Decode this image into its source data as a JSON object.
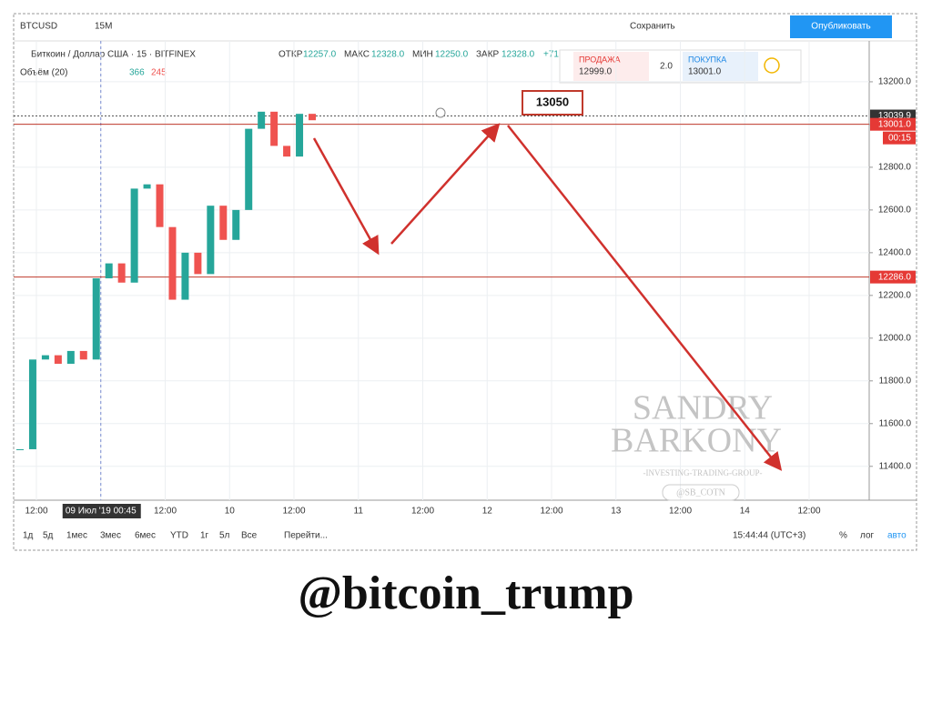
{
  "toolbar": {
    "symbol": "BTCUSD",
    "interval": "15M",
    "save": "Сохранить",
    "publish": "Опубликовать"
  },
  "legend": {
    "name": "Биткоин / Доллар США · 15 · BITFINEX",
    "open_label": "ОТКР",
    "open": "12257.0",
    "high_label": "МАКС",
    "high": "12328.0",
    "low_label": "МИН",
    "low": "12250.0",
    "close_label": "ЗАКР",
    "close": "12328.0",
    "change": "+71.",
    "volume_label": "Объём (20)",
    "volume_1": "366",
    "volume_2": "245"
  },
  "trade_panel": {
    "sell_label": "ПРОДАЖА",
    "sell": "12999.0",
    "spread": "2.0",
    "buy_label": "ПОКУПКА",
    "buy": "13001.0"
  },
  "chart_data": {
    "type": "candlestick",
    "closes": [
      11480,
      11900,
      11920,
      11880,
      11940,
      11900,
      12280,
      12350,
      12260,
      12700,
      12720,
      12520,
      12180,
      12400,
      12300,
      12620,
      12460,
      12600,
      12980,
      13060,
      12900,
      12850,
      13050,
      13020
    ],
    "up_color": "#26a69a",
    "down_color": "#ef5350",
    "x_labels": [
      "12:00",
      "09 Июл '19   00:45",
      "12:00",
      "10",
      "12:00",
      "11",
      "12:00",
      "12",
      "12:00",
      "13",
      "12:00",
      "14",
      "12:00"
    ],
    "ylim": [
      11250,
      13370
    ],
    "yticks": [
      {
        "value": 11400,
        "label": "11400.0"
      },
      {
        "value": 11600,
        "label": "11600.0"
      },
      {
        "value": 11800,
        "label": "11800.0"
      },
      {
        "value": 12000,
        "label": "12000.0"
      },
      {
        "value": 12200,
        "label": "12200.0"
      },
      {
        "value": 12400,
        "label": "12400.0"
      },
      {
        "value": 12600,
        "label": "12600.0"
      },
      {
        "value": 12800,
        "label": "12800.0"
      },
      {
        "value": 13000,
        "label": "13000.0"
      },
      {
        "value": 13200,
        "label": "13200.0"
      }
    ],
    "grid": true,
    "price_lines": [
      {
        "value": 13039.9,
        "label": "13039.9",
        "color": "#555555",
        "label_color": "#333333",
        "style": "dotted"
      },
      {
        "value": 13001,
        "label": "13001.0",
        "color": "#c0392b",
        "label_color": "#e53935",
        "style": "solid"
      },
      {
        "value": 12286,
        "label": "12286.0",
        "color": "#c0392b",
        "label_color": "#e53935",
        "style": "solid"
      }
    ],
    "timer": "00:15",
    "annotation": "13050"
  },
  "bottom_bar": {
    "ranges": [
      "1д",
      "5д",
      "1мес",
      "3мес",
      "6мес",
      "YTD",
      "1г",
      "5л",
      "Все"
    ],
    "goto": "Перейти...",
    "time": "15:44:44 (UTC+3)",
    "percent": "%",
    "log": "лог",
    "auto": "авто"
  },
  "watermark": {
    "line1": "SANDRY",
    "line2": "BARKONY",
    "line3": "-INVESTING-TRADING-GROUP-",
    "handle": "@SB_COTN"
  },
  "caption": "@bitcoin_trump"
}
